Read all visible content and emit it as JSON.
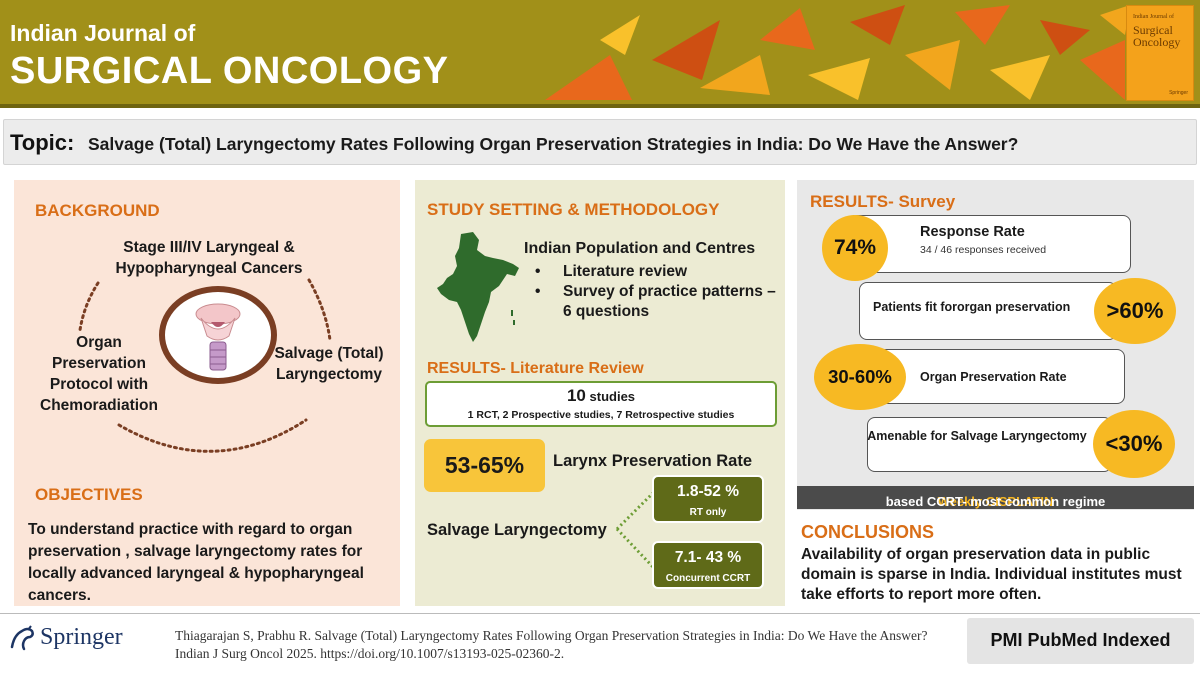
{
  "header": {
    "journal_line1": "Indian Journal of",
    "journal_line2": "SURGICAL ONCOLOGY",
    "cover_small": "Indian Journal of",
    "cover_title": "Surgical Oncology",
    "cover_publisher": "Springer",
    "colors": {
      "band": "#a19019",
      "triangles": [
        "#e8681c",
        "#f2a61d",
        "#f9c12b",
        "#ce4f12"
      ]
    }
  },
  "topic": {
    "label": "Topic:",
    "text": "Salvage (Total) Laryngectomy Rates Following Organ Preservation Strategies in India: Do We Have the Answer?"
  },
  "background": {
    "heading": "BACKGROUND",
    "stage": "Stage III/IV Laryngeal & Hypopharyngeal Cancers",
    "organ": "Organ Preservation Protocol with Chemoradiation",
    "salvage": "Salvage (Total) Laryngectomy",
    "icon": "larynx-icon"
  },
  "objectives": {
    "heading": "OBJECTIVES",
    "text": "To understand  practice with regard to organ preservation , salvage laryngectomy rates for locally advanced laryngeal & hypopharyngeal cancers."
  },
  "methodology": {
    "heading": "STUDY SETTING & METHODOLOGY",
    "population": "Indian Population and Centres",
    "items": [
      "Literature review",
      "Survey of practice patterns – 6 questions"
    ],
    "bullet": "•",
    "map_icon": "india-map-icon"
  },
  "literature": {
    "heading": "RESULTS- Literature Review",
    "studies_count": "10",
    "studies_word": "studies",
    "studies_detail": "1 RCT, 2 Prospective studies, 7 Retrospective studies",
    "preservation_pct": "53-65%",
    "preservation_label": "Larynx Preservation Rate",
    "salvage_label": "Salvage Laryngectomy",
    "rt_value": "1.8-52 %",
    "rt_label": "RT only",
    "ccrt_value": "7.1- 43 %",
    "ccrt_label": "Concurrent CCRT"
  },
  "survey": {
    "heading": "RESULTS- Survey",
    "response_pct": "74%",
    "response_title": "Response Rate",
    "response_detail": "34 / 46 responses received",
    "fit_label": "Patients fit fororgan preservation",
    "fit_pct": ">60%",
    "op_pct": "30-60%",
    "op_label": "Organ Preservation Rate",
    "amenable_label": "Amenable for Salvage Laryngectomy",
    "amenable_pct": "<30%",
    "regime_highlight": "Weekly CISPLATIN",
    "regime_rest": " based CCRT- most common regime"
  },
  "conclusions": {
    "heading": "CONCLUSIONS",
    "text": "Availability of organ preservation data in public domain is sparse in India. Individual institutes must take efforts to report more often."
  },
  "footer": {
    "publisher": "Springer",
    "citation": "Thiagarajan S, Prabhu R. Salvage (Total) Laryngectomy Rates Following Organ Preservation Strategies in India: Do We Have the Answer? Indian J Surg Oncol 2025. https://doi.org/10.1007/s13193-025-02360-2.",
    "indexed": "PMI PubMed Indexed"
  }
}
